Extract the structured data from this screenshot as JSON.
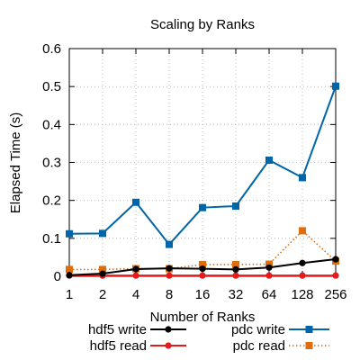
{
  "chart_data": {
    "type": "line",
    "title": "Scaling by Ranks",
    "xlabel": "Number of Ranks",
    "ylabel": "Elapsed Time (s)",
    "x_scale": "log2",
    "x": [
      1,
      2,
      4,
      8,
      16,
      32,
      64,
      128,
      256
    ],
    "x_tick_labels": [
      "1",
      "2",
      "4",
      "8",
      "16",
      "32",
      "64",
      "128",
      "256"
    ],
    "ylim": [
      0,
      0.6
    ],
    "y_ticks": [
      0,
      0.1,
      0.2,
      0.3,
      0.4,
      0.5,
      0.6
    ],
    "y_tick_labels": [
      "0",
      "0.1",
      "0.2",
      "0.3",
      "0.4",
      "0.5",
      "0.6"
    ],
    "grid": "dotted",
    "legend_position": "bottom",
    "series": [
      {
        "name": "hdf5 write",
        "color": "#000000",
        "marker": "circle",
        "line_style": "solid",
        "values": [
          0.003,
          0.007,
          0.019,
          0.021,
          0.02,
          0.018,
          0.023,
          0.035,
          0.045
        ]
      },
      {
        "name": "hdf5 read",
        "color": "#e41a1c",
        "marker": "circle",
        "line_style": "solid",
        "values": [
          0.002,
          0.002,
          0.002,
          0.002,
          0.002,
          0.002,
          0.002,
          0.002,
          0.002
        ]
      },
      {
        "name": "pdc write",
        "color": "#0065a8",
        "marker": "square",
        "line_style": "solid",
        "values": [
          0.112,
          0.113,
          0.195,
          0.084,
          0.181,
          0.185,
          0.306,
          0.26,
          0.501
        ]
      },
      {
        "name": "pdc read",
        "color": "#e06c0a",
        "marker": "square",
        "line_style": "dotted",
        "values": [
          0.018,
          0.018,
          0.02,
          0.02,
          0.031,
          0.031,
          0.032,
          0.12,
          0.04
        ]
      }
    ]
  }
}
